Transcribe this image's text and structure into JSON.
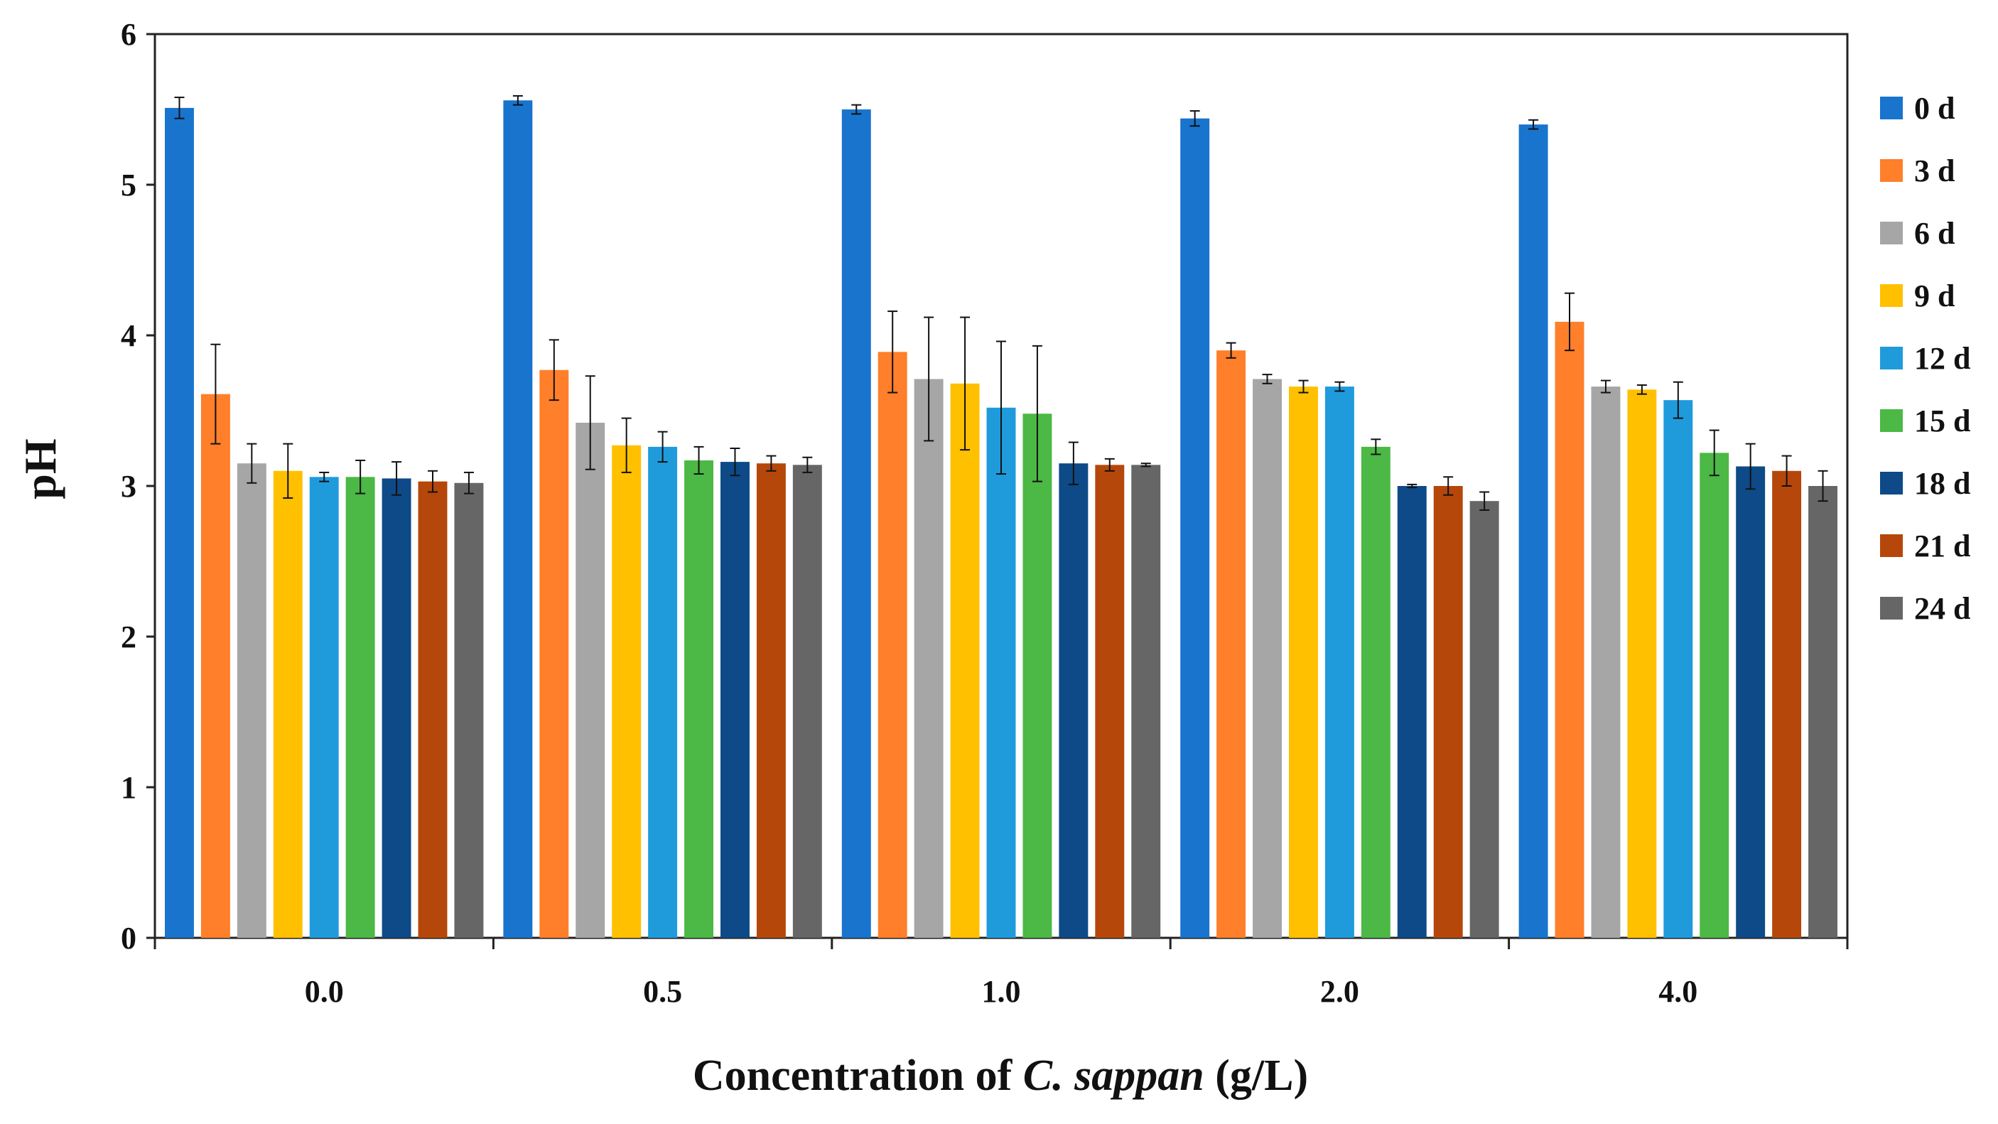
{
  "chart_data": {
    "type": "bar",
    "title": "",
    "xlabel_prefix": "Concentration of ",
    "xlabel_italic": "C. sappan",
    "xlabel_suffix": " (g/L)",
    "ylabel": "pH",
    "ylim": [
      0,
      6
    ],
    "yticks": [
      "0",
      "1",
      "2",
      "3",
      "4",
      "5",
      "6"
    ],
    "grid": false,
    "legend_position": "right",
    "categories": [
      "0.0",
      "0.5",
      "1.0",
      "2.0",
      "4.0"
    ],
    "series": [
      {
        "name": "0 d",
        "color": "#1874cd",
        "values": [
          5.51,
          5.56,
          5.5,
          5.44,
          5.4
        ],
        "errors": [
          0.07,
          0.03,
          0.03,
          0.05,
          0.03
        ]
      },
      {
        "name": "3 d",
        "color": "#ff7f2a",
        "values": [
          3.61,
          3.77,
          3.89,
          3.9,
          4.09
        ],
        "errors": [
          0.33,
          0.2,
          0.27,
          0.05,
          0.19
        ]
      },
      {
        "name": "6 d",
        "color": "#a6a6a6",
        "values": [
          3.15,
          3.42,
          3.71,
          3.71,
          3.66
        ],
        "errors": [
          0.13,
          0.31,
          0.41,
          0.03,
          0.04
        ]
      },
      {
        "name": "9 d",
        "color": "#ffc000",
        "values": [
          3.1,
          3.27,
          3.68,
          3.66,
          3.64
        ],
        "errors": [
          0.18,
          0.18,
          0.44,
          0.04,
          0.03
        ]
      },
      {
        "name": "12 d",
        "color": "#1f9bdc",
        "values": [
          3.06,
          3.26,
          3.52,
          3.66,
          3.57
        ],
        "errors": [
          0.03,
          0.1,
          0.44,
          0.03,
          0.12
        ]
      },
      {
        "name": "15 d",
        "color": "#4cb845",
        "values": [
          3.06,
          3.17,
          3.48,
          3.26,
          3.22
        ],
        "errors": [
          0.11,
          0.09,
          0.45,
          0.05,
          0.15
        ]
      },
      {
        "name": "18 d",
        "color": "#0d4a87",
        "values": [
          3.05,
          3.16,
          3.15,
          3.0,
          3.13
        ],
        "errors": [
          0.11,
          0.09,
          0.14,
          0.01,
          0.15
        ]
      },
      {
        "name": "21 d",
        "color": "#b5470b",
        "values": [
          3.03,
          3.15,
          3.14,
          3.0,
          3.1
        ],
        "errors": [
          0.07,
          0.05,
          0.04,
          0.06,
          0.1
        ]
      },
      {
        "name": "24 d",
        "color": "#666666",
        "values": [
          3.02,
          3.14,
          3.14,
          2.9,
          3.0
        ],
        "errors": [
          0.07,
          0.05,
          0.01,
          0.06,
          0.1
        ]
      }
    ]
  }
}
